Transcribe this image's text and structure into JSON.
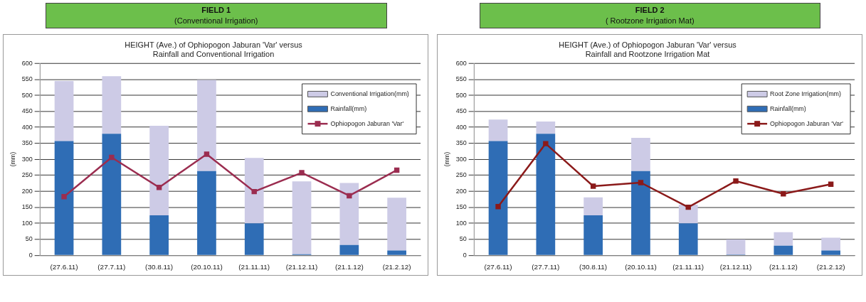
{
  "chart_data": [
    {
      "type": "bar",
      "title": "HEIGHT (Ave.) of Ophiopogon Jaburan 'Var' versus\nRainfall and Conventional Irrigation",
      "annotations": [
        "FIELD 1",
        "(Conventional Irrigation)"
      ],
      "ylabel": "(mm)",
      "categories": [
        "(27.6.11)",
        "(27.7.11)",
        "(30.8.11)",
        "(20.10.11)",
        "(21.11.11)",
        "(21.12.11)",
        "(21.1.12)",
        "(21.2.12)"
      ],
      "stacked": true,
      "ylim": [
        0,
        600
      ],
      "yticks": [
        0,
        50,
        100,
        150,
        200,
        250,
        300,
        350,
        400,
        450,
        500,
        550,
        600
      ],
      "grid": "y",
      "legend": "top right",
      "marker": "square",
      "series": [
        {
          "name": "Rainfall(mm)",
          "color": "#2f6db5",
          "values": [
            357,
            380,
            125,
            263,
            100,
            3,
            32,
            15
          ]
        },
        {
          "name": "Conventional Irrigation(mm)",
          "color": "#cdcbe6",
          "values": [
            188,
            180,
            280,
            285,
            204,
            228,
            194,
            165
          ]
        },
        {
          "name": "Ophiopogon Jaburan 'Var'",
          "type": "line",
          "color": "#9b2d50",
          "values": [
            183,
            306,
            212,
            316,
            199,
            258,
            186,
            266
          ]
        }
      ]
    },
    {
      "type": "bar",
      "title": "HEIGHT (Ave.) of Ophiopogon Jaburan 'Var' versus\nRainfall and Rootzone Irrigation Mat",
      "annotations": [
        "FIELD 2",
        "( Rootzone Irrigation Mat)"
      ],
      "ylabel": "(mm)",
      "categories": [
        "(27.6.11)",
        "(27.7.11)",
        "(30.8.11)",
        "(20.10.11)",
        "(21.11.11)",
        "(21.12.11)",
        "(21.1.12)",
        "(21.2.12)"
      ],
      "stacked": true,
      "ylim": [
        0,
        600
      ],
      "yticks": [
        0,
        50,
        100,
        150,
        200,
        250,
        300,
        350,
        400,
        450,
        500,
        550,
        600
      ],
      "grid": "y",
      "legend": "top right",
      "marker": "square",
      "series": [
        {
          "name": "Rainfall(mm)",
          "color": "#2f6db5",
          "values": [
            357,
            380,
            125,
            263,
            100,
            2,
            30,
            15
          ]
        },
        {
          "name": "Root Zone Irrigation(mm)",
          "color": "#cdcbe6",
          "values": [
            67,
            38,
            56,
            104,
            58,
            47,
            42,
            40
          ]
        },
        {
          "name": "Ophiopogon Jaburan 'Var'",
          "type": "line",
          "color": "#8b1a1a",
          "values": [
            152,
            349,
            216,
            227,
            150,
            232,
            192,
            222
          ]
        }
      ]
    }
  ]
}
